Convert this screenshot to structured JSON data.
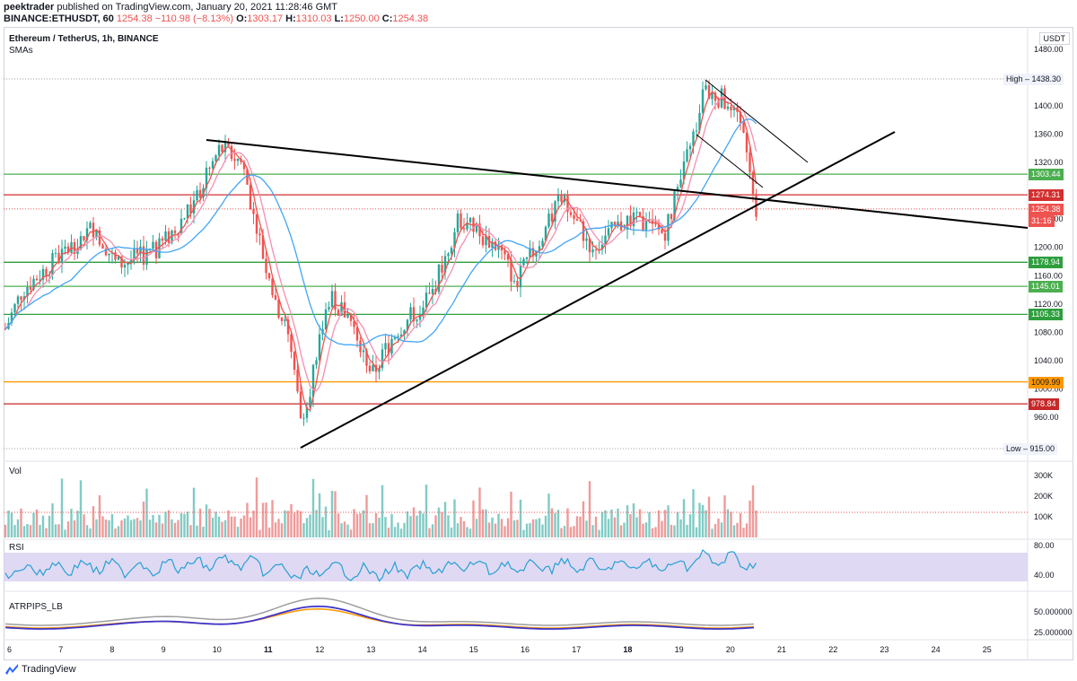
{
  "header": {
    "publisher": "peektrader",
    "published_text": "published on TradingView.com, January 20, 2021 11:28:46 GMT",
    "symbol_line": "BINANCE:ETHUSDT, 60",
    "last": "1254.38",
    "change": "−110.98 (−8.13%)",
    "o_label": "O:",
    "o": "1303.17",
    "h_label": "H:",
    "h": "1310.03",
    "l_label": "L:",
    "l": "1250.00",
    "c_label": "C:",
    "c": "1254.38"
  },
  "chart": {
    "title": "Ethereum / TetherUS, 1h, BINANCE",
    "indicator": "SMAs",
    "currency": "USDT"
  },
  "price_axis": {
    "ticks": [
      "1480.00",
      "1400.00",
      "1360.00",
      "1320.00",
      "1240.00",
      "1200.00",
      "1160.00",
      "1120.00",
      "1080.00",
      "1040.00",
      "1000.00",
      "960.00"
    ],
    "high_label": "High",
    "high": "1438.30",
    "low_label": "Low",
    "low": "915.00",
    "countdown": "31:16"
  },
  "levels": [
    {
      "value": "1303.44",
      "color": "#4caf50"
    },
    {
      "value": "1274.31",
      "color": "#d32f2f"
    },
    {
      "value": "1254.38",
      "color": "#ef5350"
    },
    {
      "value": "1178.94",
      "color": "#2e9e3e"
    },
    {
      "value": "1145.01",
      "color": "#4caf50"
    },
    {
      "value": "1105.33",
      "color": "#2e9e3e"
    },
    {
      "value": "1009.99",
      "color": "#ff9800"
    },
    {
      "value": "978.84",
      "color": "#c62828"
    }
  ],
  "vol": {
    "title": "Vol",
    "ticks": [
      "300K",
      "200K",
      "100K"
    ]
  },
  "rsi": {
    "title": "RSI",
    "ticks": [
      "80.00",
      "40.00"
    ]
  },
  "atr": {
    "title": "ATRPIPS_LB",
    "ticks": [
      "50.000000",
      "25.000000"
    ]
  },
  "time_axis": [
    "6",
    "7",
    "8",
    "9",
    "10",
    "11",
    "12",
    "13",
    "14",
    "15",
    "16",
    "17",
    "18",
    "19",
    "20",
    "21",
    "22",
    "23",
    "24",
    "25"
  ],
  "footer": {
    "brand": "TradingView"
  },
  "colors": {
    "up": "#26a69a",
    "down": "#ef5350",
    "sma_fast": "#ef5350",
    "sma_mid": "#f48fb1",
    "sma_slow": "#42a5f5"
  }
}
